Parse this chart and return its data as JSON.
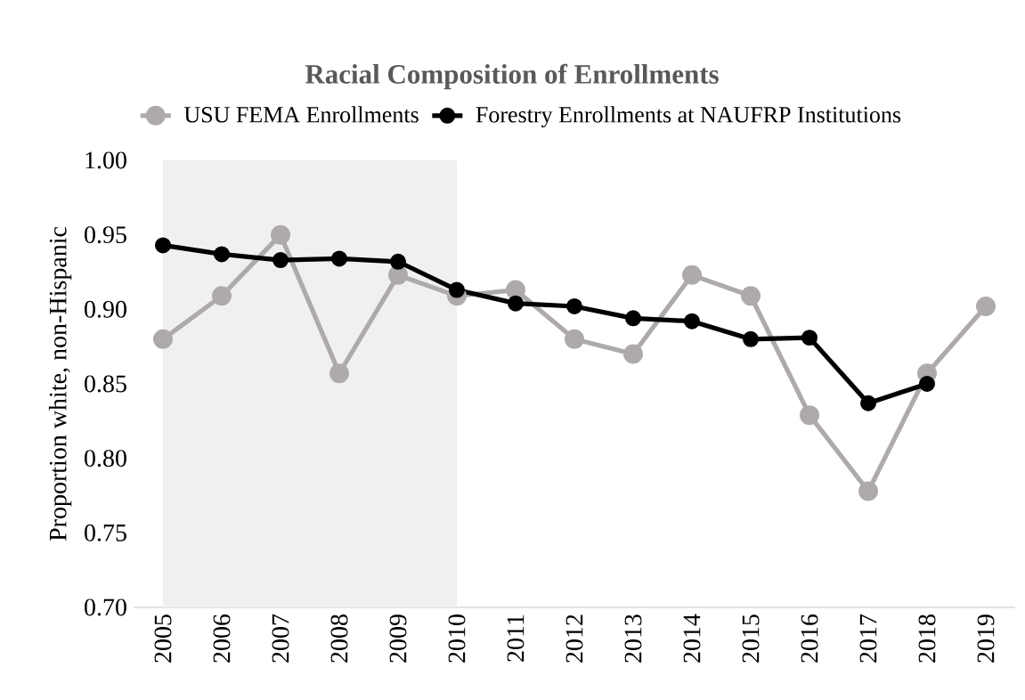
{
  "chart_data": {
    "type": "line",
    "title": "Racial Composition of Enrollments",
    "ylabel": "Proportion white, non-Hispanic",
    "x": [
      2005,
      2006,
      2007,
      2008,
      2009,
      2010,
      2011,
      2012,
      2013,
      2014,
      2015,
      2016,
      2017,
      2018,
      2019
    ],
    "series": [
      {
        "name": "USU FEMA Enrollments",
        "color": "#aeaaaa",
        "values": [
          0.88,
          0.909,
          0.95,
          0.857,
          0.923,
          0.909,
          0.913,
          0.88,
          0.87,
          0.923,
          0.909,
          0.829,
          0.778,
          0.857,
          0.902
        ]
      },
      {
        "name": "Forestry Enrollments at NAUFRP Institutions",
        "color": "#000000",
        "values": [
          0.943,
          0.937,
          0.933,
          0.934,
          0.932,
          0.913,
          0.904,
          0.902,
          0.894,
          0.892,
          0.88,
          0.881,
          0.837,
          0.85,
          null
        ]
      }
    ],
    "xlim": [
      2004.5,
      2019.5
    ],
    "xticks": [
      2005,
      2006,
      2007,
      2008,
      2009,
      2010,
      2011,
      2012,
      2013,
      2014,
      2015,
      2016,
      2017,
      2018,
      2019
    ],
    "ylim": [
      0.7,
      1.0
    ],
    "yticks": [
      {
        "value": 0.7,
        "label": "0.70"
      },
      {
        "value": 0.75,
        "label": "0.75"
      },
      {
        "value": 0.8,
        "label": "0.80"
      },
      {
        "value": 0.85,
        "label": "0.85"
      },
      {
        "value": 0.9,
        "label": "0.90"
      },
      {
        "value": 0.95,
        "label": "0.95"
      },
      {
        "value": 1.0,
        "label": "1.00"
      }
    ],
    "bands": [
      {
        "axis": "x",
        "from": 2005,
        "to": 2010,
        "color": "#f0f0f0"
      }
    ],
    "legend": "top",
    "grid": false,
    "marker": "circle",
    "line_style": "solid"
  }
}
